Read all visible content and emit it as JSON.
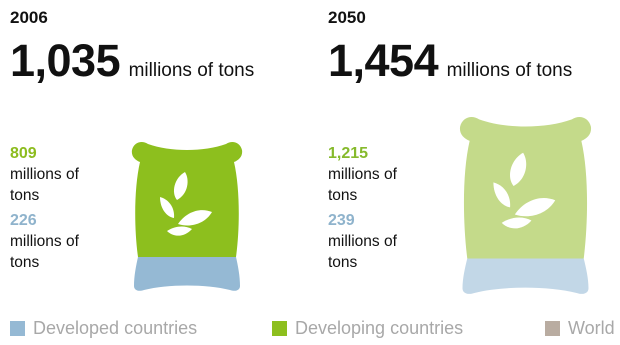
{
  "chart_data": {
    "type": "pictogram",
    "panels": [
      {
        "year": "2006",
        "total": "1,035",
        "total_unit": "millions of tons",
        "developing": {
          "value": "809",
          "unit": "millions of tons"
        },
        "developed": {
          "value": "226",
          "unit": "millions of tons"
        }
      },
      {
        "year": "2050",
        "total": "1,454",
        "total_unit": "millions of tons",
        "developing": {
          "value": "1,215",
          "unit": "millions of tons"
        },
        "developed": {
          "value": "239",
          "unit": "millions of tons"
        }
      }
    ],
    "legend": [
      {
        "label": "Developed countries",
        "color": "#95b9d4"
      },
      {
        "label": "Developing countries",
        "color": "#8dbf1e"
      },
      {
        "label": "World",
        "color": "#b9aca1"
      }
    ]
  },
  "colors": {
    "developing_2006": "#8dbf1e",
    "developing_2050": "#c4da8a",
    "developed_2006": "#95b9d4",
    "developed_2050": "#c2d7e7",
    "icon": "#ffffff"
  },
  "icons": {
    "sack": "grain-sack-icon",
    "grain": "grain-leaves-icon"
  }
}
